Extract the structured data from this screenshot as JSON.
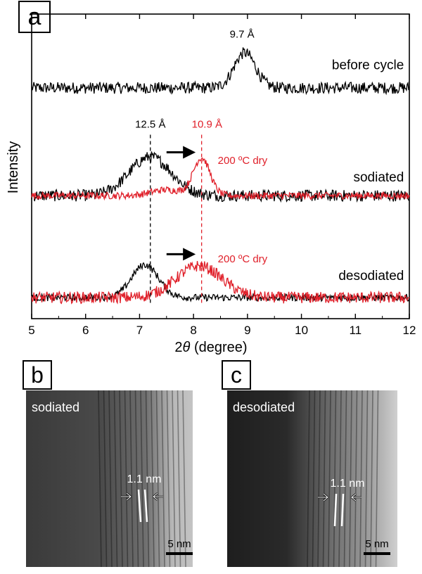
{
  "panels": {
    "a": {
      "letter": "a"
    },
    "b": {
      "letter": "b",
      "label": "sodiated",
      "spacing": "1.1 nm",
      "scale": "5 nm"
    },
    "c": {
      "letter": "c",
      "label": "desodiated",
      "spacing": "1.1 nm",
      "scale": "5 nm"
    }
  },
  "chart_data": {
    "type": "line",
    "title": "",
    "xlabel_prefix": "2",
    "xlabel_symbol": "θ",
    "xlabel_suffix": " (degree)",
    "ylabel": "Intensity",
    "xlim": [
      5,
      12
    ],
    "x_ticks": [
      "5",
      "6",
      "7",
      "8",
      "9",
      "10",
      "11",
      "12"
    ],
    "y_ticks": [],
    "grid": false,
    "legend": "none",
    "colors": {
      "black": "#000000",
      "red": "#e0202a"
    },
    "series": [
      {
        "trace": "before cycle",
        "label": "before cycle",
        "color": "#000000",
        "baseline": 0.92,
        "peaks": [
          {
            "center": 8.95,
            "height": 0.3,
            "width": 0.28
          }
        ],
        "noise": 0.05
      },
      {
        "trace": "sodiated",
        "label": "sodiated",
        "color": "#000000",
        "baseline": 0.0,
        "peaks": [
          {
            "center": 7.2,
            "height": 0.33,
            "width": 0.55
          }
        ],
        "noise": 0.05
      },
      {
        "trace": "sodiated 200 ºC dry",
        "label": "200 ºC dry",
        "color": "#e0202a",
        "baseline": 0.0,
        "peaks": [
          {
            "center": 8.15,
            "height": 0.32,
            "width": 0.22
          },
          {
            "center": 7.5,
            "height": 0.05,
            "width": 0.4
          }
        ],
        "noise": 0.03
      },
      {
        "trace": "desodiated",
        "label": "desodiated",
        "color": "#000000",
        "baseline": -0.87,
        "peaks": [
          {
            "center": 7.1,
            "height": 0.28,
            "width": 0.35
          }
        ],
        "noise": 0.03
      },
      {
        "trace": "desodiated 200 ºC dry",
        "label": "200 ºC dry",
        "color": "#e0202a",
        "baseline": -0.87,
        "peaks": [
          {
            "center": 8.1,
            "height": 0.27,
            "width": 0.6
          }
        ],
        "noise": 0.05
      }
    ],
    "annotations": [
      {
        "text": "9.7 Å",
        "x": 8.9,
        "y": 1.35,
        "color": "#000000"
      },
      {
        "text": "12.5 Å",
        "x": 7.2,
        "y": 0.58,
        "color": "#000000"
      },
      {
        "text": "10.9 Å",
        "x": 8.25,
        "y": 0.58,
        "color": "#e0202a"
      }
    ],
    "reference_lines": [
      {
        "x": 7.2,
        "y_from": 0.52,
        "y_to": -0.92,
        "color": "#000000"
      },
      {
        "x": 8.15,
        "y_from": 0.52,
        "y_to": -0.92,
        "color": "#e0202a"
      }
    ],
    "shift_arrows": [
      {
        "x_from": 7.5,
        "x_to": 8.0,
        "y": 0.37
      },
      {
        "x_from": 7.5,
        "x_to": 8.0,
        "y": -0.5
      }
    ],
    "ylim": [
      -1.05,
      1.55
    ]
  }
}
